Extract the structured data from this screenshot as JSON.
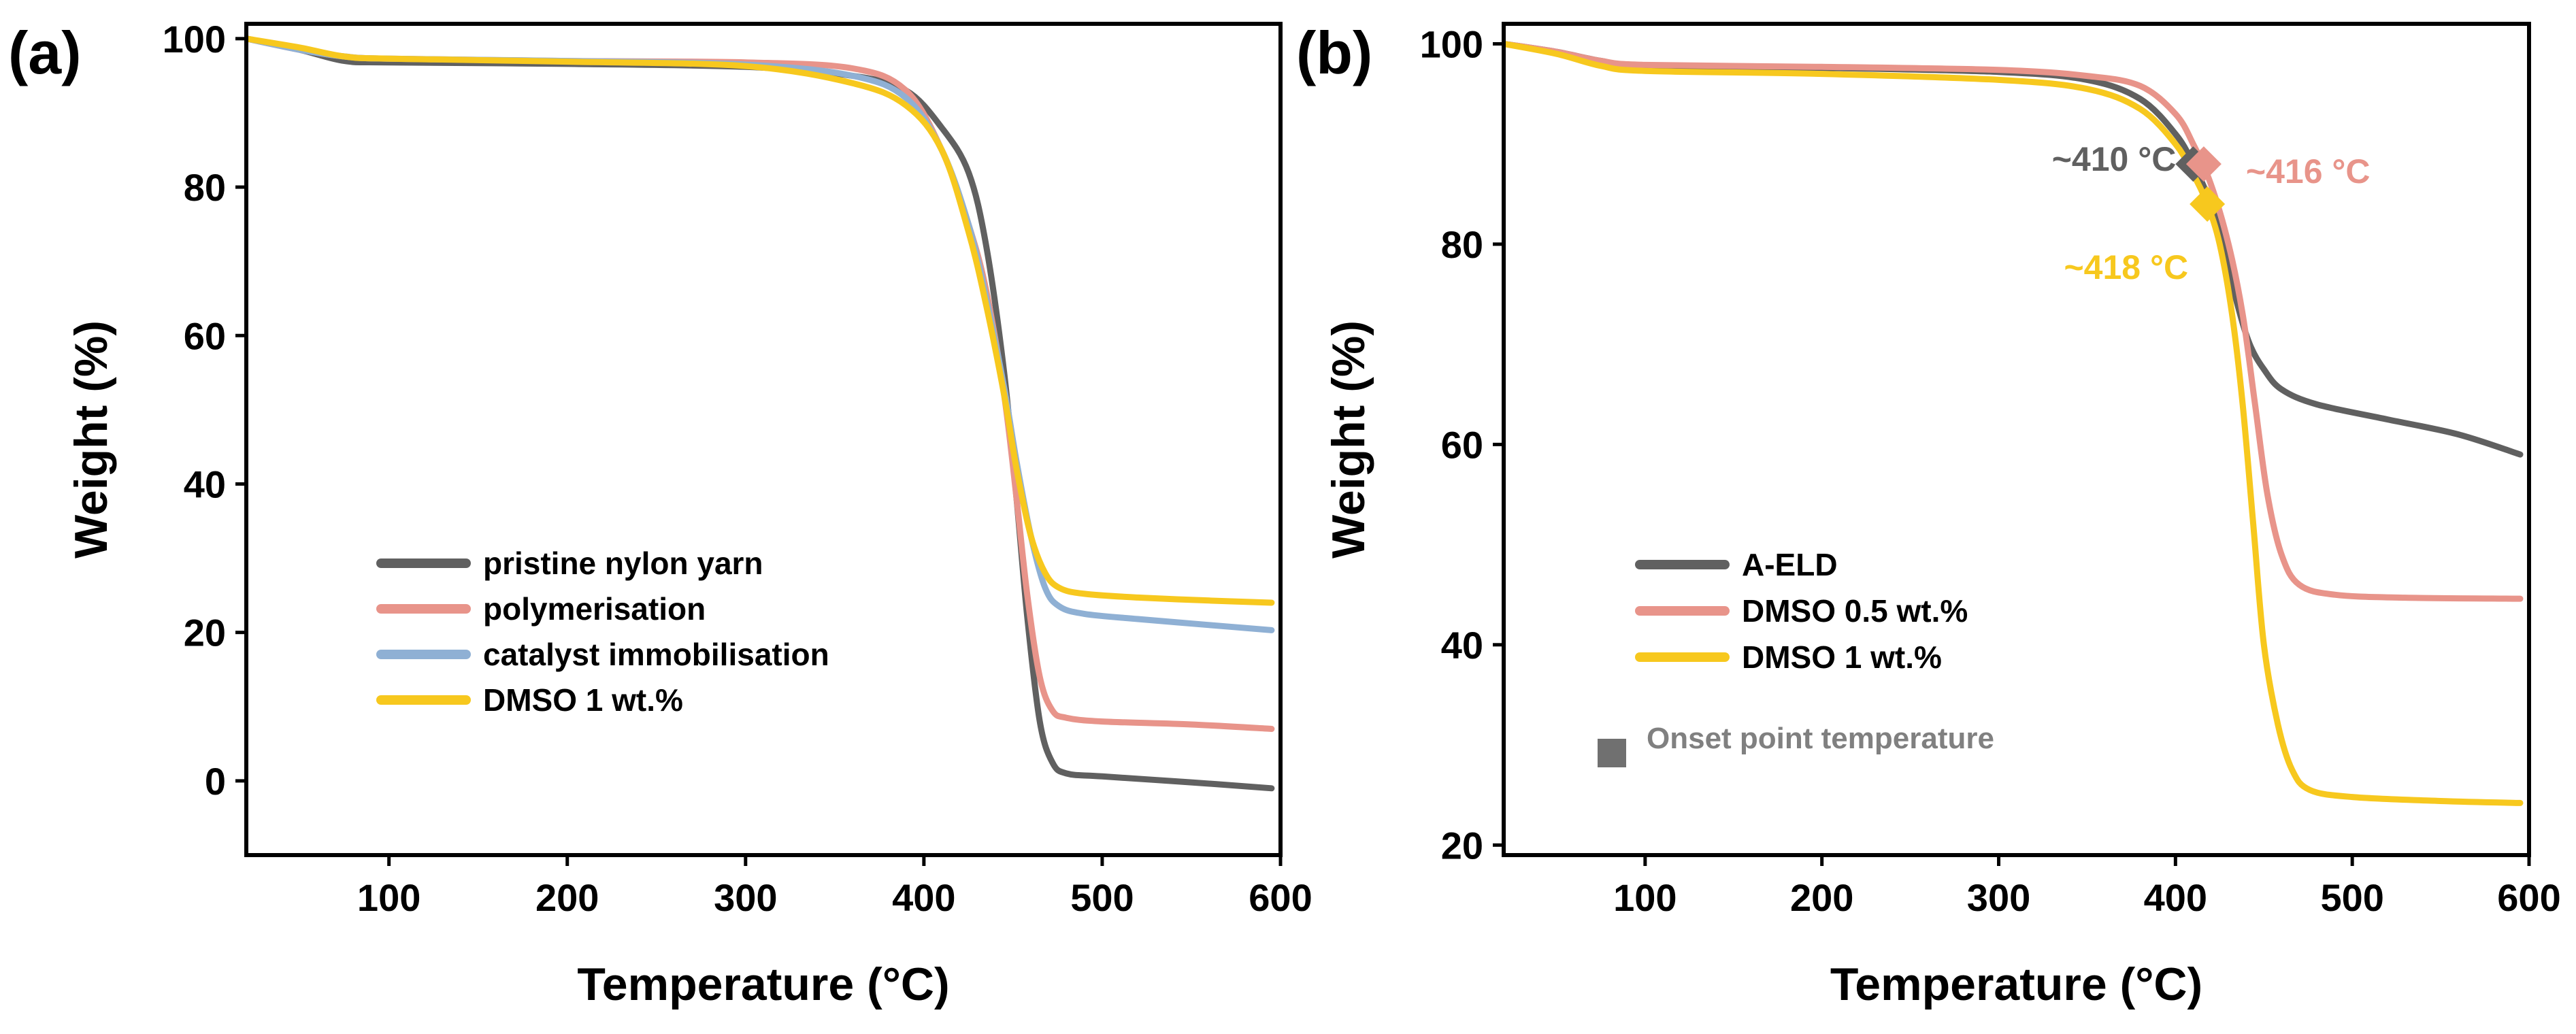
{
  "chart_data": [
    {
      "panel_label": "(a)",
      "type": "line",
      "xlabel": "Temperature (°C)",
      "ylabel": "Weight (%)",
      "xlim": [
        20,
        600
      ],
      "ylim": [
        -10,
        102
      ],
      "xticks": [
        "100",
        "200",
        "300",
        "400",
        "500",
        "600"
      ],
      "yticks": [
        "0",
        "20",
        "40",
        "60",
        "80",
        "100"
      ],
      "legend_position": "lower-left",
      "series": [
        {
          "name": "pristine nylon yarn",
          "color": "#606060",
          "points": [
            [
              20,
              100
            ],
            [
              50,
              98.5
            ],
            [
              75,
              97
            ],
            [
              100,
              96.8
            ],
            [
              200,
              96.6
            ],
            [
              300,
              96.2
            ],
            [
              360,
              95
            ],
            [
              390,
              93
            ],
            [
              410,
              88
            ],
            [
              425,
              82
            ],
            [
              435,
              72
            ],
            [
              445,
              55
            ],
            [
              452,
              38
            ],
            [
              458,
              22
            ],
            [
              465,
              8
            ],
            [
              472,
              2.5
            ],
            [
              480,
              1
            ],
            [
              500,
              0.6
            ],
            [
              550,
              -0.2
            ],
            [
              595,
              -1
            ]
          ]
        },
        {
          "name": "polymerisation",
          "color": "#E8948A",
          "points": [
            [
              20,
              100
            ],
            [
              50,
              98.5
            ],
            [
              75,
              97.6
            ],
            [
              100,
              97.3
            ],
            [
              200,
              97
            ],
            [
              300,
              96.8
            ],
            [
              360,
              96
            ],
            [
              390,
              93
            ],
            [
              410,
              85
            ],
            [
              425,
              75
            ],
            [
              435,
              66
            ],
            [
              445,
              52
            ],
            [
              452,
              38
            ],
            [
              458,
              25
            ],
            [
              465,
              14
            ],
            [
              472,
              9.5
            ],
            [
              480,
              8.5
            ],
            [
              500,
              8
            ],
            [
              550,
              7.6
            ],
            [
              595,
              7
            ]
          ]
        },
        {
          "name": "catalyst immobilisation",
          "color": "#8FB0D4",
          "points": [
            [
              20,
              100
            ],
            [
              50,
              98.5
            ],
            [
              75,
              97.6
            ],
            [
              100,
              97.3
            ],
            [
              200,
              97
            ],
            [
              300,
              96.5
            ],
            [
              360,
              95
            ],
            [
              390,
              92
            ],
            [
              410,
              85
            ],
            [
              425,
              75
            ],
            [
              435,
              65
            ],
            [
              445,
              53
            ],
            [
              452,
              43
            ],
            [
              460,
              33
            ],
            [
              468,
              26
            ],
            [
              476,
              23.5
            ],
            [
              490,
              22.5
            ],
            [
              520,
              21.8
            ],
            [
              560,
              21
            ],
            [
              595,
              20.3
            ]
          ]
        },
        {
          "name": "DMSO 1 wt.%",
          "color": "#F7C81E",
          "points": [
            [
              20,
              100
            ],
            [
              50,
              98.8
            ],
            [
              75,
              97.6
            ],
            [
              100,
              97.3
            ],
            [
              200,
              96.9
            ],
            [
              300,
              96.3
            ],
            [
              360,
              94
            ],
            [
              390,
              91
            ],
            [
              410,
              85
            ],
            [
              425,
              74
            ],
            [
              435,
              64
            ],
            [
              445,
              52
            ],
            [
              452,
              42
            ],
            [
              460,
              33
            ],
            [
              468,
              28
            ],
            [
              476,
              26
            ],
            [
              490,
              25.2
            ],
            [
              520,
              24.7
            ],
            [
              560,
              24.3
            ],
            [
              595,
              24
            ]
          ]
        }
      ]
    },
    {
      "panel_label": "(b)",
      "type": "line",
      "xlabel": "Temperature (°C)",
      "ylabel": "Weight (%)",
      "xlim": [
        20,
        600
      ],
      "ylim": [
        19,
        102
      ],
      "xticks": [
        "100",
        "200",
        "300",
        "400",
        "500",
        "600"
      ],
      "yticks": [
        "20",
        "40",
        "60",
        "80",
        "100"
      ],
      "legend_position": "lower-left",
      "series": [
        {
          "name": "A-ELD",
          "color": "#606060",
          "points": [
            [
              20,
              100
            ],
            [
              50,
              99.2
            ],
            [
              75,
              98.3
            ],
            [
              100,
              97.8
            ],
            [
              200,
              97.6
            ],
            [
              300,
              97.2
            ],
            [
              350,
              96.4
            ],
            [
              380,
              94.5
            ],
            [
              400,
              91
            ],
            [
              410,
              88
            ],
            [
              420,
              84
            ],
            [
              428,
              79
            ],
            [
              435,
              74
            ],
            [
              442,
              70
            ],
            [
              450,
              67.5
            ],
            [
              460,
              65.5
            ],
            [
              480,
              64
            ],
            [
              520,
              62.5
            ],
            [
              560,
              61
            ],
            [
              595,
              59
            ]
          ]
        },
        {
          "name": "DMSO 0.5 wt.%",
          "color": "#E8948A",
          "points": [
            [
              20,
              100
            ],
            [
              50,
              99.2
            ],
            [
              75,
              98.3
            ],
            [
              100,
              97.9
            ],
            [
              200,
              97.7
            ],
            [
              300,
              97.4
            ],
            [
              350,
              96.8
            ],
            [
              380,
              95.8
            ],
            [
              400,
              93
            ],
            [
              410,
              90
            ],
            [
              420,
              86
            ],
            [
              430,
              80
            ],
            [
              438,
              73
            ],
            [
              445,
              64
            ],
            [
              452,
              55
            ],
            [
              460,
              49
            ],
            [
              470,
              46
            ],
            [
              490,
              45
            ],
            [
              530,
              44.7
            ],
            [
              595,
              44.6
            ]
          ]
        },
        {
          "name": "DMSO 1 wt.%",
          "color": "#F7C81E",
          "points": [
            [
              20,
              100
            ],
            [
              50,
              99
            ],
            [
              75,
              97.8
            ],
            [
              100,
              97.3
            ],
            [
              200,
              97
            ],
            [
              300,
              96.4
            ],
            [
              350,
              95.5
            ],
            [
              380,
              93.5
            ],
            [
              400,
              90
            ],
            [
              410,
              87
            ],
            [
              418,
              84
            ],
            [
              425,
              80
            ],
            [
              432,
              73
            ],
            [
              438,
              64
            ],
            [
              444,
              52
            ],
            [
              450,
              40
            ],
            [
              458,
              32
            ],
            [
              466,
              27.5
            ],
            [
              476,
              25.5
            ],
            [
              500,
              24.8
            ],
            [
              550,
              24.4
            ],
            [
              595,
              24.2
            ]
          ]
        }
      ],
      "onset_markers": [
        {
          "series": "A-ELD",
          "x": 410,
          "y": 88,
          "label": "~410 °C",
          "color": "#606060"
        },
        {
          "series": "DMSO 0.5 wt.%",
          "x": 416,
          "y": 88,
          "label": "~416 °C",
          "color": "#E8948A"
        },
        {
          "series": "DMSO 1 wt.%",
          "x": 418,
          "y": 84,
          "label": "~418 °C",
          "color": "#F7C81E"
        }
      ],
      "onset_legend": {
        "label": "Onset point temperature",
        "color": "#707070"
      }
    }
  ]
}
